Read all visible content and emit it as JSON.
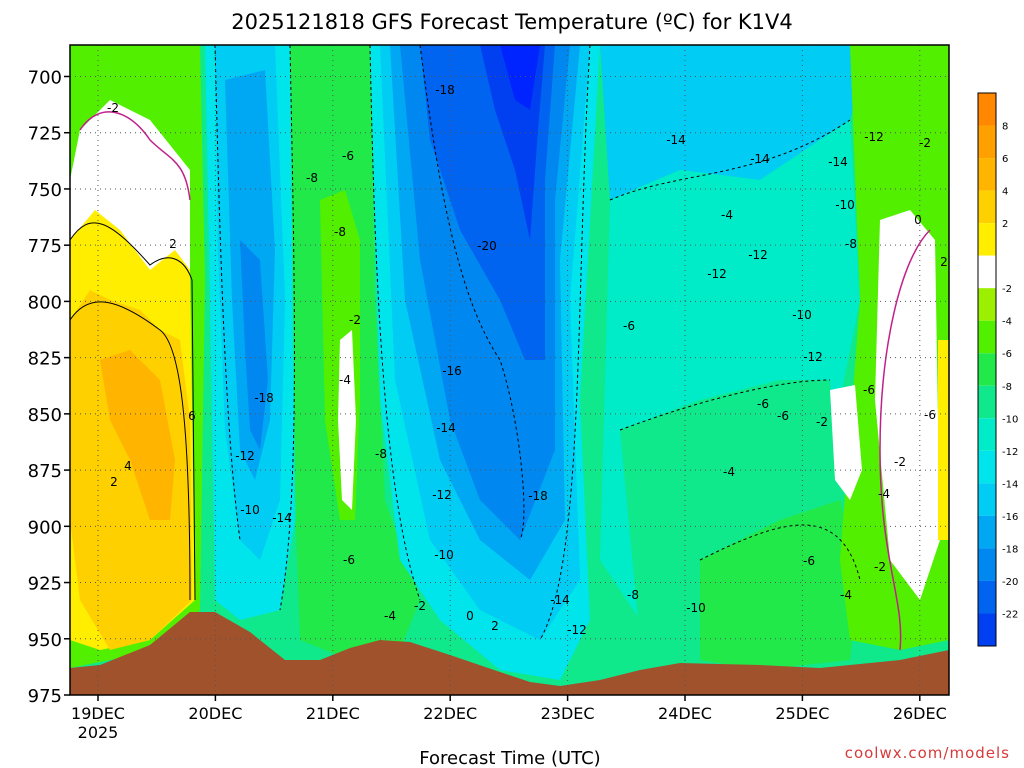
{
  "chart_data": {
    "type": "heatmap",
    "title": "2025121818 GFS Forecast Temperature (ºC) for K1V4",
    "xlabel": "Forecast Time (UTC)",
    "ylabel": "",
    "x_ticks": [
      "19DEC",
      "20DEC",
      "21DEC",
      "22DEC",
      "23DEC",
      "24DEC",
      "25DEC",
      "26DEC"
    ],
    "x_tick_year": "2025",
    "y_ticks": [
      "700",
      "725",
      "750",
      "775",
      "800",
      "825",
      "850",
      "875",
      "900",
      "925",
      "950",
      "975"
    ],
    "y_range": [
      975,
      686
    ],
    "grid": true,
    "colorbar": {
      "position": "right",
      "levels": [
        {
          "label": "8",
          "color": "#ffa000"
        },
        {
          "label": "6",
          "color": "#ffb400"
        },
        {
          "label": "4",
          "color": "#ffd000"
        },
        {
          "label": "2",
          "color": "#ffee00"
        },
        {
          "label": "",
          "color": "#ffffff"
        },
        {
          "label": "-2",
          "color": "#9cef00"
        },
        {
          "label": "-4",
          "color": "#52f000"
        },
        {
          "label": "-6",
          "color": "#22e94a"
        },
        {
          "label": "-8",
          "color": "#10e88c"
        },
        {
          "label": "-10",
          "color": "#00ecc8"
        },
        {
          "label": "-12",
          "color": "#00e4ec"
        },
        {
          "label": "-14",
          "color": "#00ccf4"
        },
        {
          "label": "-16",
          "color": "#00a8f4"
        },
        {
          "label": "-18",
          "color": "#0088f0"
        },
        {
          "label": "-20",
          "color": "#0064f0"
        },
        {
          "label": "-22",
          "color": "#0040f0"
        }
      ],
      "extend_color": "#0024ff"
    },
    "terrain_color": "#a0522d",
    "annotations": [
      "-2",
      "2",
      "6",
      "4",
      "2",
      "-18",
      "-14",
      "-14",
      "-6",
      "-8",
      "-8",
      "-2",
      "-4",
      "-18",
      "-12",
      "-10",
      "-14",
      "-20",
      "-16",
      "-14",
      "-12",
      "-10",
      "-18",
      "-14",
      "-12",
      "-6",
      "-4",
      "-12",
      "-12",
      "-10",
      "-12",
      "-14",
      "-12",
      "-10",
      "-8",
      "-6",
      "-6",
      "-4",
      "-10",
      "-8",
      "-6",
      "-4",
      "-2",
      "-6",
      "-4",
      "-2",
      "-2",
      "0",
      "2",
      "-2",
      "-6",
      "-8",
      "-6",
      "-4",
      "-2",
      "0",
      "2"
    ]
  },
  "watermark": "coolwx.com/models"
}
